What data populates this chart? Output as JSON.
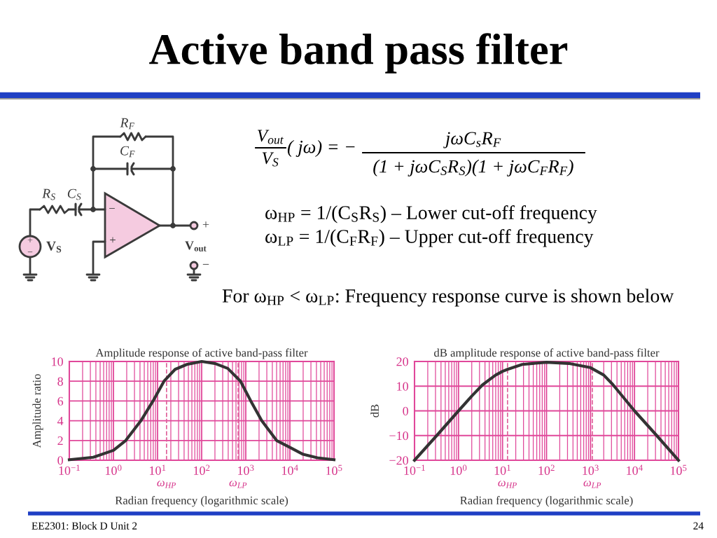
{
  "chart_data": [
    {
      "type": "other",
      "title": "Active band pass filter",
      "annotations": [
        "V$_{out}$",
        "V$_{S}$",
        "( jω) = −",
        "jωC$_{s}$R$_{F}$",
        "(1 + jωC$_{S}$R$_{S}$)(1 + jωC$_{F}$R$_{F}$)",
        "ω$_{HP}$ = 1/(C$_{S}$R$_{S}$) – Lower cut-off frequency",
        "ω$_{LP}$ = 1/(C$_{F}$R$_{F}$) – Upper cut-off frequency",
        "For ω$_{HP}$ < ω$_{LP}$: Frequency response curve is shown below",
        "R$_{F}$",
        "C$_{F}$",
        "R$_{S}$",
        "C$_{S}$",
        "V$_{S}$",
        "V$_{out}$",
        "−",
        "+",
        "+",
        "−",
        "+",
        "−",
        "EE2301: Block D Unit 2",
        "24"
      ]
    },
    {
      "type": "line",
      "title": "Amplitude response of active band-pass filter",
      "xlabel": "Radian frequency (logarithmic scale)",
      "ylabel": "Amplitude ratio",
      "x": [
        0.1,
        0.35,
        1,
        1.9,
        4.2,
        7.9,
        14,
        25,
        46,
        100,
        200,
        390,
        760,
        1300,
        2300,
        5000,
        10000,
        20000,
        42000,
        100000
      ],
      "series": [
        {
          "color": "#333333",
          "values": [
            0.05,
            0.3,
            1,
            2,
            4,
            6,
            8,
            9.2,
            9.7,
            10,
            9.8,
            9.3,
            8,
            6,
            4,
            2,
            1.3,
            0.6,
            0.25,
            0.05
          ]
        }
      ],
      "log": "x",
      "xlim": [
        0.1,
        100000
      ],
      "xticks": [
        {
          "value": 0.1,
          "label": "10$^{−1}$"
        },
        {
          "value": 0.2,
          "label": null
        },
        {
          "value": 0.3,
          "label": null
        },
        {
          "value": 0.4,
          "label": null
        },
        {
          "value": 0.5,
          "label": null
        },
        {
          "value": 0.6,
          "label": null
        },
        {
          "value": 0.7,
          "label": null
        },
        {
          "value": 0.8,
          "label": null
        },
        {
          "value": 0.9,
          "label": null
        },
        {
          "value": 1,
          "label": "10$^{0}$"
        },
        {
          "value": 2,
          "label": null
        },
        {
          "value": 3,
          "label": null
        },
        {
          "value": 4,
          "label": null
        },
        {
          "value": 5,
          "label": null
        },
        {
          "value": 6,
          "label": null
        },
        {
          "value": 7,
          "label": null
        },
        {
          "value": 8,
          "label": null
        },
        {
          "value": 9,
          "label": null
        },
        {
          "value": 10,
          "label": "10$^{1}$"
        },
        {
          "value": 20,
          "label": null
        },
        {
          "value": 30,
          "label": null
        },
        {
          "value": 40,
          "label": null
        },
        {
          "value": 50,
          "label": null
        },
        {
          "value": 60,
          "label": null
        },
        {
          "value": 70,
          "label": null
        },
        {
          "value": 80,
          "label": null
        },
        {
          "value": 90,
          "label": null
        },
        {
          "value": 100,
          "label": "10$^{2}$"
        },
        {
          "value": 200,
          "label": null
        },
        {
          "value": 300,
          "label": null
        },
        {
          "value": 400,
          "label": null
        },
        {
          "value": 500,
          "label": null
        },
        {
          "value": 600,
          "label": null
        },
        {
          "value": 700,
          "label": null
        },
        {
          "value": 800,
          "label": null
        },
        {
          "value": 900,
          "label": null
        },
        {
          "value": 1000,
          "label": "10$^{3}$"
        },
        {
          "value": 2000,
          "label": null
        },
        {
          "value": 3000,
          "label": null
        },
        {
          "value": 4000,
          "label": null
        },
        {
          "value": 5000,
          "label": null
        },
        {
          "value": 6000,
          "label": null
        },
        {
          "value": 7000,
          "label": null
        },
        {
          "value": 8000,
          "label": null
        },
        {
          "value": 9000,
          "label": null
        },
        {
          "value": 10000,
          "label": "10$^{4}$"
        },
        {
          "value": 20000,
          "label": null
        },
        {
          "value": 30000,
          "label": null
        },
        {
          "value": 40000,
          "label": null
        },
        {
          "value": 50000,
          "label": null
        },
        {
          "value": 60000,
          "label": null
        },
        {
          "value": 70000,
          "label": null
        },
        {
          "value": 80000,
          "label": null
        },
        {
          "value": 90000,
          "label": null
        },
        {
          "value": 100000,
          "label": "10$^{5}$"
        }
      ],
      "ylim": [
        0,
        10
      ],
      "yticks": [
        0,
        2,
        4,
        6,
        8,
        10
      ],
      "grid": true,
      "ref_lines": [
        {
          "axis": "x",
          "value": 16,
          "label": "ω$_{HP}$",
          "color": "#e0609a",
          "line_style": "dashed"
        },
        {
          "axis": "x",
          "value": 670,
          "label": "ω$_{LP}$",
          "color": "#e0609a",
          "line_style": "dashed"
        }
      ]
    },
    {
      "type": "line",
      "title": "dB amplitude response of active band-pass filter",
      "xlabel": "Radian frequency (logarithmic scale)",
      "ylabel": "dB",
      "x": [
        0.1,
        0.32,
        1,
        2,
        3.5,
        5,
        7,
        10,
        13,
        28,
        100,
        320,
        1000,
        2000,
        3200,
        10000,
        32000,
        100000
      ],
      "series": [
        {
          "color": "#333333",
          "values": [
            -20,
            -10,
            0,
            6,
            10.5,
            12.6,
            14.5,
            16,
            16.8,
            18.8,
            19.7,
            19.2,
            17.5,
            14.5,
            10.7,
            0,
            -10,
            -20
          ]
        }
      ],
      "log": "x",
      "xlim": [
        0.1,
        100000
      ],
      "xticks": [
        {
          "value": 0.1,
          "label": "10$^{−1}$"
        },
        {
          "value": 0.2,
          "label": null
        },
        {
          "value": 0.3,
          "label": null
        },
        {
          "value": 0.4,
          "label": null
        },
        {
          "value": 0.5,
          "label": null
        },
        {
          "value": 0.6,
          "label": null
        },
        {
          "value": 0.7,
          "label": null
        },
        {
          "value": 0.8,
          "label": null
        },
        {
          "value": 0.9,
          "label": null
        },
        {
          "value": 1,
          "label": "10$^{0}$"
        },
        {
          "value": 2,
          "label": null
        },
        {
          "value": 3,
          "label": null
        },
        {
          "value": 4,
          "label": null
        },
        {
          "value": 5,
          "label": null
        },
        {
          "value": 6,
          "label": null
        },
        {
          "value": 7,
          "label": null
        },
        {
          "value": 8,
          "label": null
        },
        {
          "value": 9,
          "label": null
        },
        {
          "value": 10,
          "label": "10$^{1}$"
        },
        {
          "value": 20,
          "label": null
        },
        {
          "value": 30,
          "label": null
        },
        {
          "value": 40,
          "label": null
        },
        {
          "value": 50,
          "label": null
        },
        {
          "value": 60,
          "label": null
        },
        {
          "value": 70,
          "label": null
        },
        {
          "value": 80,
          "label": null
        },
        {
          "value": 90,
          "label": null
        },
        {
          "value": 100,
          "label": "10$^{2}$"
        },
        {
          "value": 200,
          "label": null
        },
        {
          "value": 300,
          "label": null
        },
        {
          "value": 400,
          "label": null
        },
        {
          "value": 500,
          "label": null
        },
        {
          "value": 600,
          "label": null
        },
        {
          "value": 700,
          "label": null
        },
        {
          "value": 800,
          "label": null
        },
        {
          "value": 900,
          "label": null
        },
        {
          "value": 1000,
          "label": "10$^{3}$"
        },
        {
          "value": 2000,
          "label": null
        },
        {
          "value": 3000,
          "label": null
        },
        {
          "value": 4000,
          "label": null
        },
        {
          "value": 5000,
          "label": null
        },
        {
          "value": 6000,
          "label": null
        },
        {
          "value": 7000,
          "label": null
        },
        {
          "value": 8000,
          "label": null
        },
        {
          "value": 9000,
          "label": null
        },
        {
          "value": 10000,
          "label": "10$^{4}$"
        },
        {
          "value": 20000,
          "label": null
        },
        {
          "value": 30000,
          "label": null
        },
        {
          "value": 40000,
          "label": null
        },
        {
          "value": 50000,
          "label": null
        },
        {
          "value": 60000,
          "label": null
        },
        {
          "value": 70000,
          "label": null
        },
        {
          "value": 80000,
          "label": null
        },
        {
          "value": 90000,
          "label": null
        },
        {
          "value": 100000,
          "label": "10$^{5}$"
        }
      ],
      "ylim": [
        -20,
        20
      ],
      "yticks": [
        {
          "value": -20,
          "label": "−20"
        },
        {
          "value": -10,
          "label": "−10"
        },
        0,
        10,
        20
      ],
      "grid": true,
      "ref_lines": [
        {
          "axis": "x",
          "value": 13,
          "label": "ω$_{HP}$",
          "color": "#e0609a",
          "line_style": "dashed"
        },
        {
          "axis": "x",
          "value": 1100,
          "label": "ω$_{LP}$",
          "color": "#e0609a",
          "line_style": "dashed"
        }
      ]
    }
  ]
}
